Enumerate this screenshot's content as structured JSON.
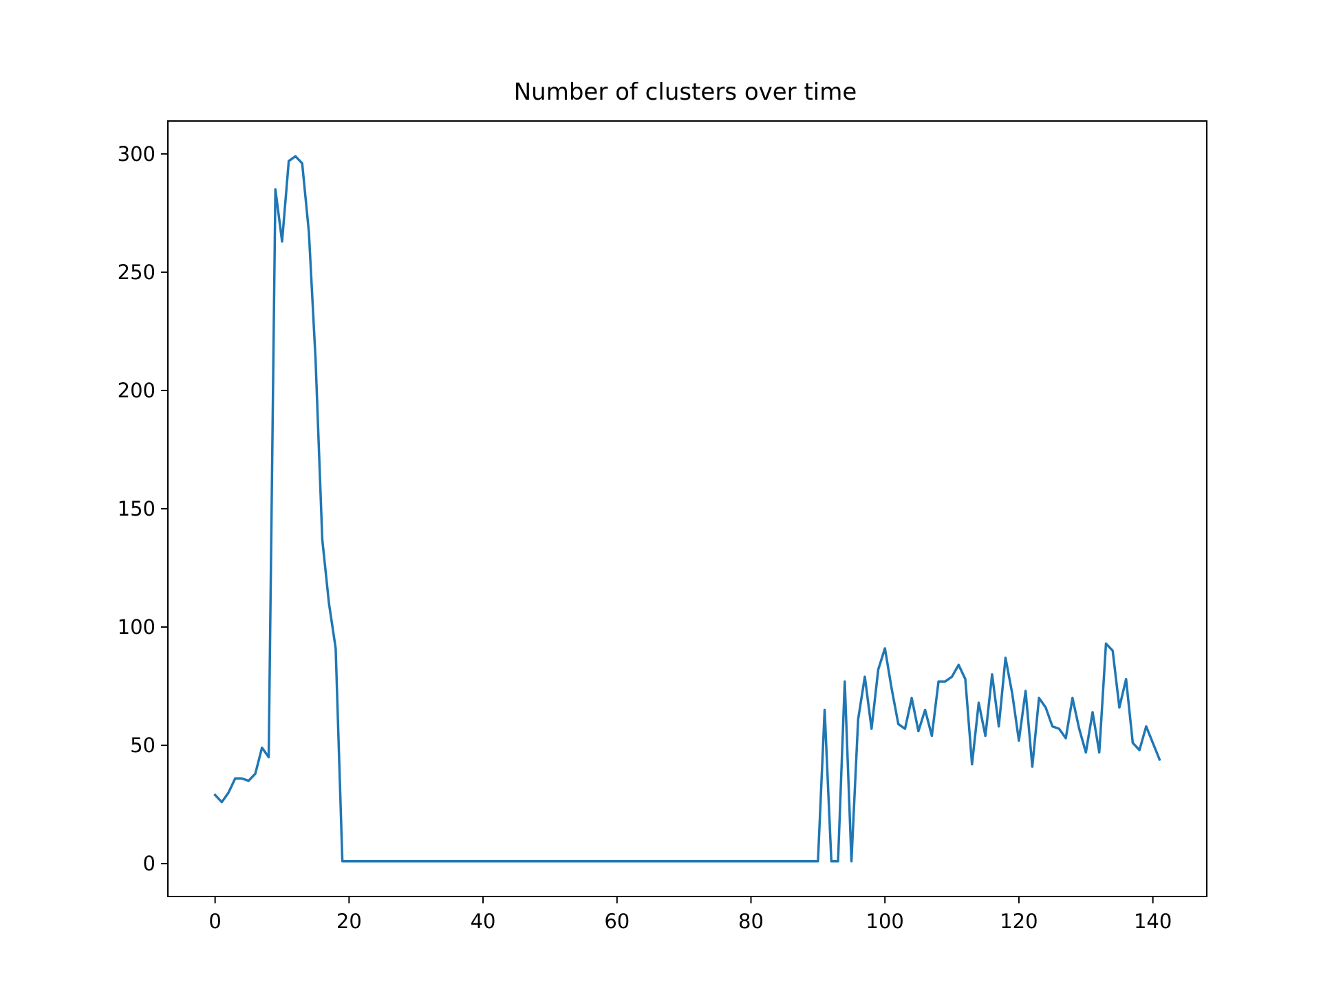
{
  "chart_data": {
    "type": "line",
    "title": "Number of clusters over time",
    "xlabel": "",
    "ylabel": "",
    "xlim": [
      -7.05,
      148.05
    ],
    "ylim": [
      -13.9,
      313.9
    ],
    "x_ticks": [
      0,
      20,
      40,
      60,
      80,
      100,
      120,
      140
    ],
    "y_ticks": [
      0,
      50,
      100,
      150,
      200,
      250,
      300
    ],
    "grid": false,
    "legend": "none",
    "series": [
      {
        "color": "#1f77b4",
        "x": [
          0,
          1,
          2,
          3,
          4,
          5,
          6,
          7,
          8,
          9,
          10,
          11,
          12,
          13,
          14,
          15,
          16,
          17,
          18,
          19,
          20,
          21,
          22,
          23,
          24,
          25,
          26,
          27,
          28,
          29,
          30,
          31,
          32,
          33,
          34,
          35,
          36,
          37,
          38,
          39,
          40,
          41,
          42,
          43,
          44,
          45,
          46,
          47,
          48,
          49,
          50,
          51,
          52,
          53,
          54,
          55,
          56,
          57,
          58,
          59,
          60,
          61,
          62,
          63,
          64,
          65,
          66,
          67,
          68,
          69,
          70,
          71,
          72,
          73,
          74,
          75,
          76,
          77,
          78,
          79,
          80,
          81,
          82,
          83,
          84,
          85,
          86,
          87,
          88,
          89,
          90,
          91,
          92,
          93,
          94,
          95,
          96,
          97,
          98,
          99,
          100,
          101,
          102,
          103,
          104,
          105,
          106,
          107,
          108,
          109,
          110,
          111,
          112,
          113,
          114,
          115,
          116,
          117,
          118,
          119,
          120,
          121,
          122,
          123,
          124,
          125,
          126,
          127,
          128,
          129,
          130,
          131,
          132,
          133,
          134,
          135,
          136,
          137,
          138,
          139,
          140,
          141
        ],
        "values": [
          29,
          26,
          30,
          36,
          36,
          35,
          38,
          49,
          45,
          285,
          263,
          297,
          299,
          296,
          267,
          213,
          137,
          110,
          91,
          1,
          1,
          1,
          1,
          1,
          1,
          1,
          1,
          1,
          1,
          1,
          1,
          1,
          1,
          1,
          1,
          1,
          1,
          1,
          1,
          1,
          1,
          1,
          1,
          1,
          1,
          1,
          1,
          1,
          1,
          1,
          1,
          1,
          1,
          1,
          1,
          1,
          1,
          1,
          1,
          1,
          1,
          1,
          1,
          1,
          1,
          1,
          1,
          1,
          1,
          1,
          1,
          1,
          1,
          1,
          1,
          1,
          1,
          1,
          1,
          1,
          1,
          1,
          1,
          1,
          1,
          1,
          1,
          1,
          1,
          1,
          1,
          65,
          1,
          1,
          77,
          1,
          61,
          79,
          57,
          82,
          91,
          74,
          59,
          57,
          70,
          56,
          65,
          54,
          77,
          77,
          79,
          84,
          78,
          42,
          68,
          54,
          80,
          58,
          87,
          72,
          52,
          73,
          41,
          70,
          66,
          58,
          57,
          53,
          70,
          57,
          47,
          64,
          47,
          93,
          90,
          66,
          78,
          51,
          48,
          58,
          51,
          44
        ]
      }
    ]
  }
}
